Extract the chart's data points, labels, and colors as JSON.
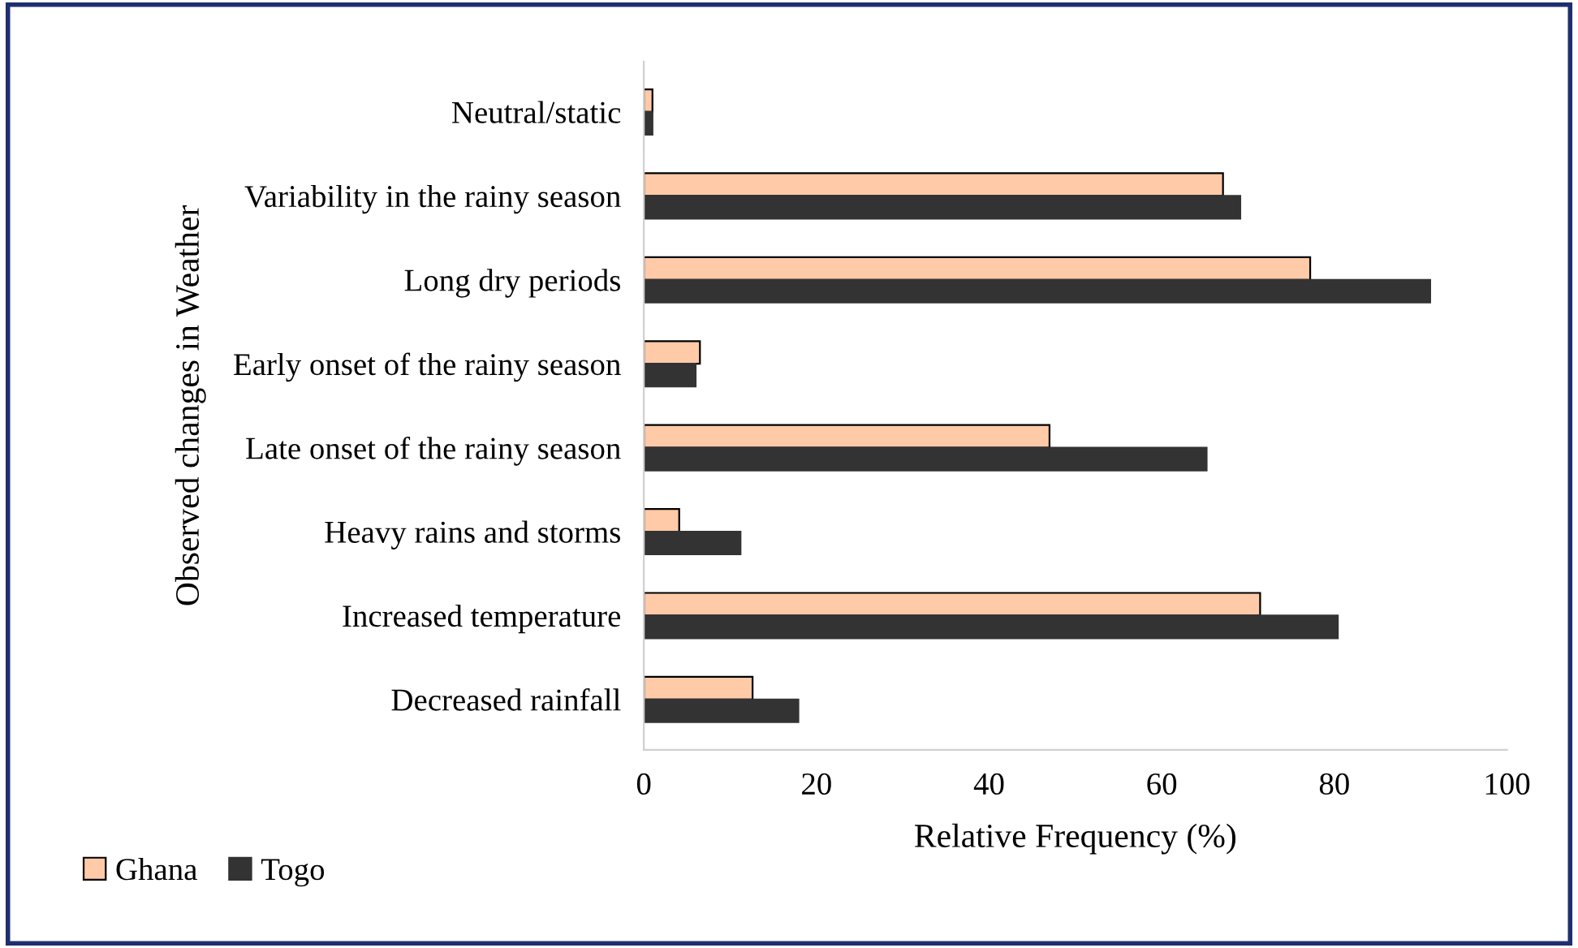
{
  "chart_data": {
    "type": "bar",
    "orientation": "horizontal",
    "xlabel": "Relative Frequency (%)",
    "ylabel": "Observed changes in Weather",
    "categories": [
      "Neutral/static",
      "Variability in the rainy season",
      "Long dry periods",
      "Early onset of the rainy season",
      "Late onset of the rainy season",
      "Heavy rains and storms",
      "Increased temperature",
      "Decreased rainfall"
    ],
    "series": [
      {
        "name": "Ghana",
        "color": "#ffcaa8",
        "values": [
          1,
          67.1,
          77.2,
          6.5,
          47.0,
          4.1,
          71.4,
          12.6
        ]
      },
      {
        "name": "Togo",
        "color": "#333333",
        "values": [
          1,
          69.1,
          91.1,
          6.0,
          65.2,
          11.2,
          80.4,
          17.9
        ]
      }
    ],
    "xlim": [
      0,
      100
    ],
    "xticks": [
      0,
      20,
      40,
      60,
      80,
      100
    ],
    "grid": false,
    "legend": "bottom left"
  }
}
